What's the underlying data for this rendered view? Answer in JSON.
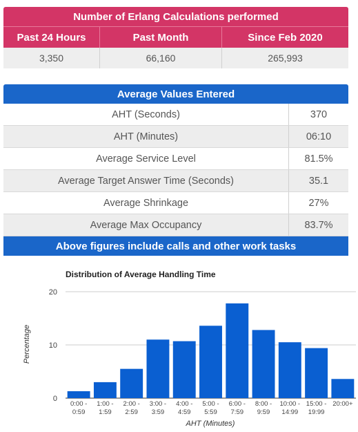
{
  "calculations": {
    "title": "Number of Erlang Calculations performed",
    "headers": [
      "Past 24 Hours",
      "Past Month",
      "Since Feb 2020"
    ],
    "values": [
      "3,350",
      "66,160",
      "265,993"
    ]
  },
  "averages": {
    "title": "Average Values Entered",
    "rows": [
      {
        "label": "AHT (Seconds)",
        "value": "370"
      },
      {
        "label": "AHT (Minutes)",
        "value": "06:10"
      },
      {
        "label": "Average Service Level",
        "value": "81.5%"
      },
      {
        "label": "Average Target Answer Time (Seconds)",
        "value": "35.1"
      },
      {
        "label": "Average Shrinkage",
        "value": "27%"
      },
      {
        "label": "Average Max Occupancy",
        "value": "83.7%"
      }
    ],
    "footer": "Above figures include calls and other work tasks"
  },
  "colors": {
    "pink": "#d33566",
    "blue": "#1a66c9",
    "bar": "#0a5fd1"
  },
  "chart_data": {
    "type": "bar",
    "title": "Distribution of Average Handling Time",
    "xlabel": "AHT (Minutes)",
    "ylabel": "Percentage",
    "ylim": [
      0,
      20
    ],
    "yticks": [
      "0",
      "10",
      "20"
    ],
    "grid": true,
    "categories": [
      [
        "0:00 -",
        "0:59"
      ],
      [
        "1:00 -",
        "1:59"
      ],
      [
        "2:00 -",
        "2:59"
      ],
      [
        "3:00 -",
        "3:59"
      ],
      [
        "4:00 -",
        "4:59"
      ],
      [
        "5:00 -",
        "5:59"
      ],
      [
        "6:00 -",
        "7:59"
      ],
      [
        "8:00 -",
        "9:59"
      ],
      [
        "10:00 -",
        "14:99"
      ],
      [
        "15:00 -",
        "19:99"
      ],
      [
        "20:00+",
        ""
      ]
    ],
    "values": [
      1.3,
      3.0,
      5.5,
      11.0,
      10.7,
      13.6,
      17.8,
      12.8,
      10.5,
      9.4,
      3.6
    ]
  }
}
